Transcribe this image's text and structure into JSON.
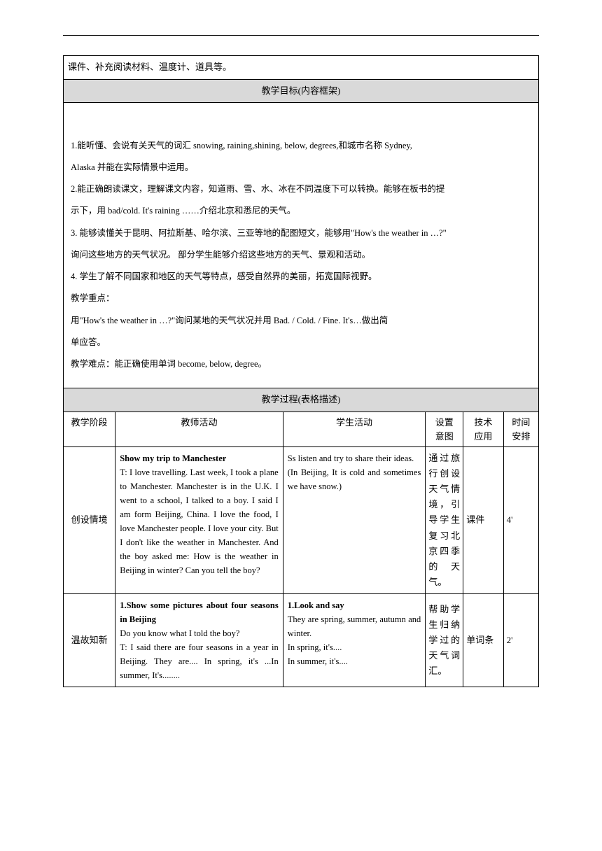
{
  "top_text": "课件、补充阅读材料、温度计、道具等。",
  "section1_title": "教学目标(内容框架)",
  "objectives": {
    "p1": "1.能听懂、会说有关天气的词汇 snowing, raining,shining, below, degrees,和城市名称 Sydney,",
    "p1b": "Alaska 并能在实际情景中运用。",
    "p2": "2.能正确朗读课文，理解课文内容，知道雨、雪、水、冰在不同温度下可以转换。能够在板书的提",
    "p2b": "示下，用 bad/cold. It's raining ……介绍北京和悉尼的天气。",
    "p3": "3. 能够读懂关于昆明、阿拉斯基、哈尔滨、三亚等地的配图短文，能够用\"How's the weather in …?\"",
    "p3b": "询问这些地方的天气状况。 部分学生能够介绍这些地方的天气、景观和活动。",
    "p4": "4. 学生了解不同国家和地区的天气等特点，感受自然界的美丽，拓宽国际视野。",
    "focus_label": "教学重点：",
    "focus": "用\"How's the weather in …?\"询问某地的天气状况并用 Bad. / Cold. / Fine. It's…做出简",
    "focus_b": "单应答。",
    "difficulty": "教学难点：能正确使用单词 become, below,  degree。"
  },
  "section2_title": "教学过程(表格描述)",
  "headers": {
    "stage": "教学阶段",
    "teacher": "教师活动",
    "student": "学生活动",
    "intent1": "设置",
    "intent2": "意图",
    "tech1": "技术",
    "tech2": "应用",
    "time1": "时间",
    "time2": "安排"
  },
  "row1": {
    "stage": "创设情境",
    "teacher_bold": "Show my trip to Manchester",
    "teacher_text": "T: I love travelling. Last week, I took a plane to Manchester. Manchester is in the U.K. I went to a school, I talked to a boy. I said    I am form Beijing, China.   I love the food, I love Manchester people. I love your city. But I don't like the weather in Manchester. And the boy asked me: How is the weather in Beijing in winter? Can you tell the boy?",
    "student_text1": "Ss listen and try to share their ideas.",
    "student_text2": "(In Beijing, It is cold and sometimes we have snow.)",
    "intent": "通过旅行创设天气情境，引导学生复习北京四季的天气。",
    "tech": "课件",
    "time": "4'"
  },
  "row2": {
    "stage": "温故知新",
    "teacher_bold": "1.Show some pictures about four seasons in Beijing",
    "teacher_text": "Do you know what I told the boy?\nT: I said there are four seasons in a year in Beijing. They are....  In spring, it's ...In summer, It's........",
    "student_bold": "1.Look and say",
    "student_text": "They are spring,  summer,  autumn and winter.\nIn spring, it's....\nIn summer, it's....",
    "intent": "帮助学生归纳学过的天气词汇。",
    "tech": "单词条",
    "time": "2'"
  }
}
